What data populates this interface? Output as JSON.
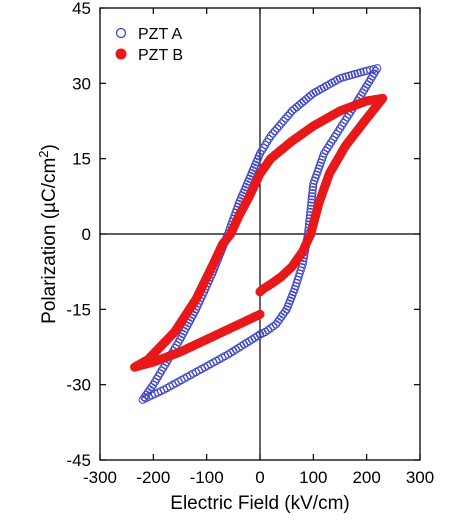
{
  "chart_data": {
    "type": "scatter",
    "xlabel": "Electric Field (kV/cm)",
    "ylabel_main": "Polarization (µC/cm",
    "ylabel_sup": "2",
    "ylabel_end": ")",
    "xlim": [
      -300,
      300
    ],
    "ylim": [
      -45,
      45
    ],
    "xticks": [
      -300,
      -200,
      -100,
      0,
      100,
      200,
      300
    ],
    "yticks": [
      -45,
      -30,
      -15,
      0,
      15,
      30,
      45
    ],
    "xtick_labels": [
      "-300",
      "-200",
      "-100",
      "0",
      "100",
      "200",
      "300"
    ],
    "ytick_labels": [
      "-45",
      "-30",
      "-15",
      "0",
      "15",
      "30",
      "45"
    ],
    "crosshair_at_zero": true,
    "grid": false,
    "legend_position": "top-left",
    "series": [
      {
        "name": "PZT A",
        "marker": "open-circle",
        "color": "#3b44c4",
        "points": [
          [
            0,
            -20
          ],
          [
            -60,
            -24
          ],
          [
            -120,
            -27.5
          ],
          [
            -180,
            -31
          ],
          [
            -220,
            -33
          ],
          [
            -200,
            -30
          ],
          [
            -150,
            -21
          ],
          [
            -120,
            -15
          ],
          [
            -90,
            -8
          ],
          [
            -60,
            0
          ],
          [
            -40,
            6
          ],
          [
            -20,
            11
          ],
          [
            0,
            16
          ],
          [
            20,
            19.5
          ],
          [
            60,
            24.5
          ],
          [
            100,
            28
          ],
          [
            150,
            31
          ],
          [
            200,
            32.5
          ],
          [
            220,
            33
          ],
          [
            180,
            26
          ],
          [
            150,
            21
          ],
          [
            120,
            16
          ],
          [
            100,
            10
          ],
          [
            90,
            0
          ],
          [
            80,
            -6
          ],
          [
            65,
            -11
          ],
          [
            50,
            -15
          ],
          [
            30,
            -18
          ],
          [
            10,
            -19.5
          ],
          [
            0,
            -20
          ]
        ]
      },
      {
        "name": "PZT B",
        "marker": "filled-circle",
        "color": "#e8191b",
        "points": [
          [
            0,
            -16
          ],
          [
            -50,
            -18.5
          ],
          [
            -100,
            -21
          ],
          [
            -150,
            -23.5
          ],
          [
            -200,
            -25.5
          ],
          [
            -235,
            -26.5
          ],
          [
            -210,
            -25
          ],
          [
            -160,
            -19.5
          ],
          [
            -120,
            -13
          ],
          [
            -90,
            -6.5
          ],
          [
            -70,
            -2
          ],
          [
            -55,
            0
          ],
          [
            -40,
            3.5
          ],
          [
            -20,
            7.5
          ],
          [
            0,
            12
          ],
          [
            20,
            15
          ],
          [
            60,
            18.5
          ],
          [
            100,
            21.5
          ],
          [
            150,
            24.5
          ],
          [
            200,
            26.5
          ],
          [
            230,
            27
          ],
          [
            200,
            23
          ],
          [
            160,
            17.5
          ],
          [
            130,
            12
          ],
          [
            110,
            6
          ],
          [
            95,
            0
          ],
          [
            80,
            -3.5
          ],
          [
            60,
            -6.5
          ],
          [
            40,
            -8.5
          ],
          [
            20,
            -10
          ],
          [
            5,
            -11
          ],
          [
            0,
            -11.5
          ]
        ]
      }
    ]
  }
}
